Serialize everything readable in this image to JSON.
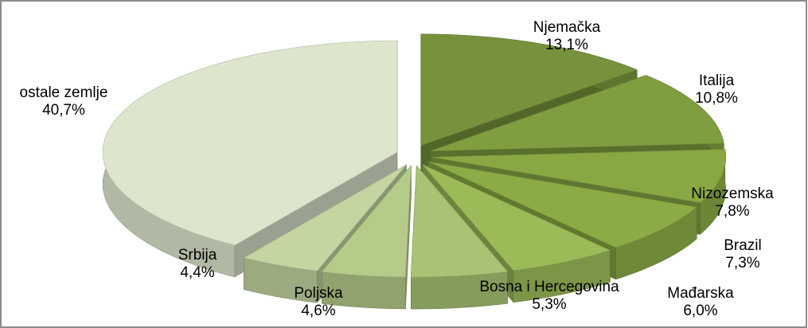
{
  "chart_data": {
    "type": "pie",
    "categories": [
      "Njemačka",
      "Italija",
      "Nizozemska",
      "Brazil",
      "Mađarska",
      "Bosna i Hercegovina",
      "Poljska",
      "Srbija",
      "ostale zemlje"
    ],
    "values": [
      13.1,
      10.8,
      7.8,
      7.3,
      6.0,
      5.3,
      4.6,
      4.4,
      40.7
    ],
    "value_labels": [
      "13,1%",
      "10,8%",
      "7,8%",
      "7,3%",
      "6,0%",
      "5,3%",
      "4,6%",
      "4,4%",
      "40,7%"
    ],
    "colors": [
      "#76923c",
      "#7f9e40",
      "#88a844",
      "#8aab45",
      "#9bbb59",
      "#a8c373",
      "#b4cb8a",
      "#c3d5a0",
      "#dde6cd"
    ]
  }
}
